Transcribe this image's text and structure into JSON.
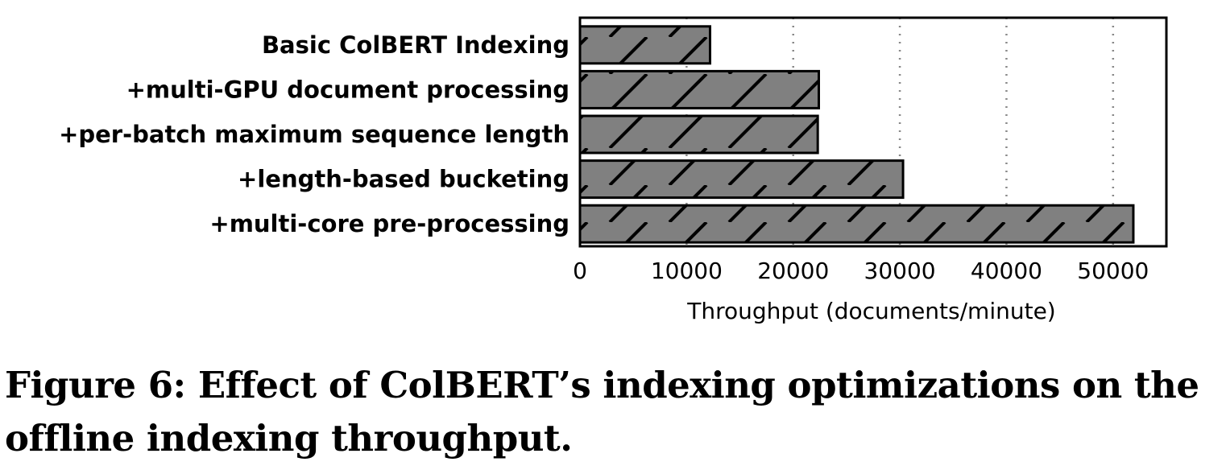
{
  "chart_data": {
    "type": "bar",
    "orientation": "horizontal",
    "categories": [
      "Basic ColBERT Indexing",
      "+multi-GPU document processing",
      "+per-batch maximum sequence length",
      "+length-based bucketing",
      "+multi-core pre-processing"
    ],
    "values": [
      12200,
      22400,
      22300,
      30300,
      51900
    ],
    "xlabel": "Throughput (documents/minute)",
    "ylabel": "",
    "xlim": [
      0,
      55000
    ],
    "xticks": [
      0,
      10000,
      20000,
      30000,
      40000,
      50000
    ],
    "xtick_labels": [
      "0",
      "10000",
      "20000",
      "30000",
      "40000",
      "50000"
    ],
    "grid": "vertical dotted",
    "bar_color": "#808080",
    "bar_hatch": "diagonal"
  },
  "caption": "Figure 6: Effect of ColBERT’s indexing optimizations on the offline indexing throughput."
}
